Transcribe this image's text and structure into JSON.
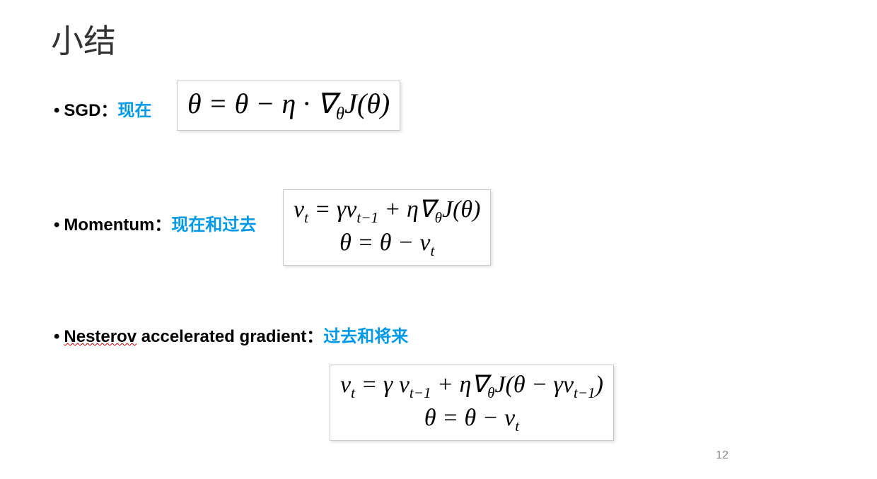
{
  "title": "小结",
  "bullets": {
    "sgd": {
      "label": "SGD：",
      "highlight": "现在"
    },
    "momentum": {
      "label": "Momentum：",
      "highlight": "现在和过去"
    },
    "nesterov": {
      "label_pre": "Nesterov",
      "label_post": " accelerated gradient：",
      "highlight": "过去和将来"
    }
  },
  "formulas": {
    "sgd": {
      "line1": "θ = θ − η · ∇_θ J(θ)"
    },
    "momentum": {
      "line1": "v_t = γv_{t−1} + η∇_θ J(θ)",
      "line2": "θ = θ − v_t"
    },
    "nesterov": {
      "line1": "v_t = γ v_{t−1} + η∇_θ J(θ − γv_{t−1})",
      "line2": "θ = θ − v_t"
    }
  },
  "styling": {
    "background_color": "#ffffff",
    "title_color": "#333333",
    "title_fontsize": 46,
    "bullet_label_color": "#000000",
    "bullet_label_fontsize": 24,
    "bullet_label_fontweight": "bold",
    "highlight_color": "#0099e5",
    "formula_color": "#000000",
    "formula_fontsize_large": 40,
    "formula_fontsize": 34,
    "formula_border_color": "#c8c8c8",
    "formula_shadow": "2px 2px 4px rgba(0,0,0,0.12)",
    "wavy_underline_color": "#d00000",
    "page_number_color": "#888888"
  },
  "page_number": "12"
}
